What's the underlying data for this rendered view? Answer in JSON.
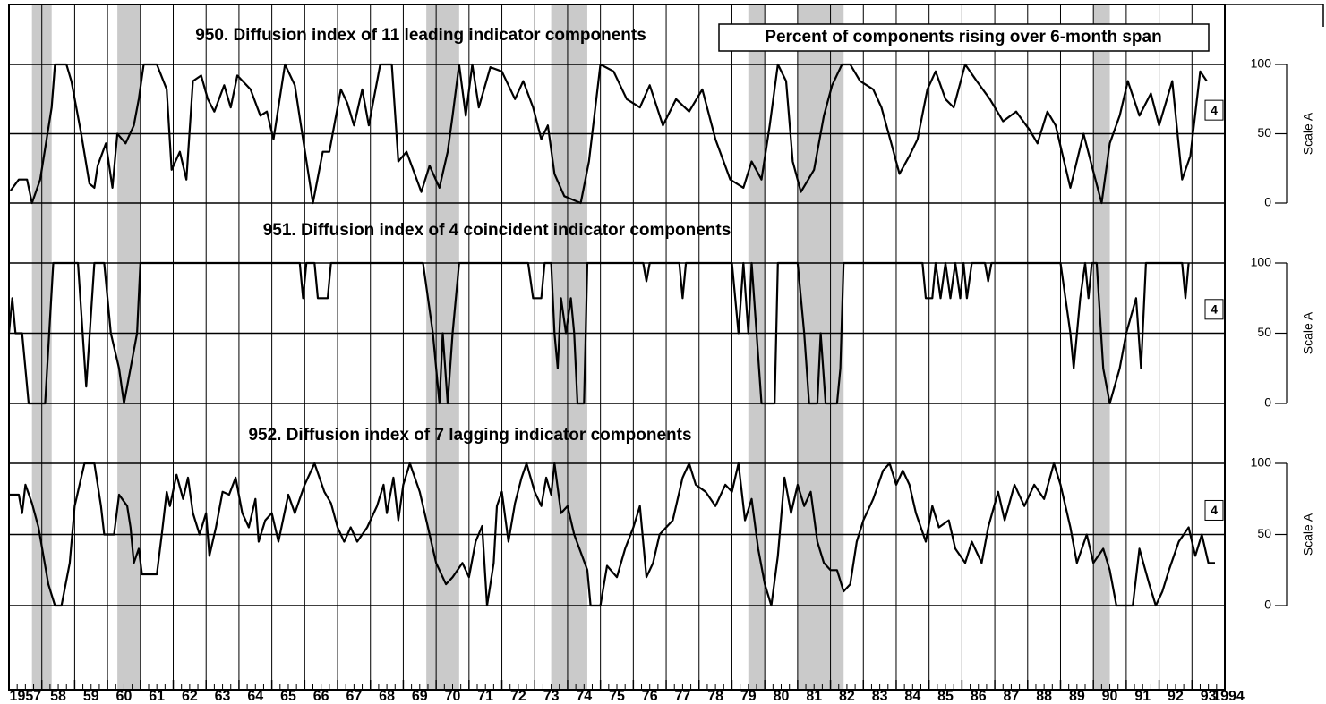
{
  "chart_data": [
    {
      "type": "line",
      "title": "950. Diffusion index of 11 leading indicator components",
      "annotation": "Percent of components rising over 6-month span",
      "box_label": "4",
      "ylabel": "Scale A",
      "color": "#000000",
      "shade_color": "#b8b8b8",
      "shaded_periods": [
        [
          1957.7,
          1958.3
        ],
        [
          1960.3,
          1961.0
        ],
        [
          1969.7,
          1970.7
        ],
        [
          1973.5,
          1974.6
        ],
        [
          1979.5,
          1980.0
        ],
        [
          1981.0,
          1982.4
        ],
        [
          1990.0,
          1990.5
        ]
      ],
      "xlim": [
        1957,
        1994
      ],
      "ylim": [
        0,
        100
      ],
      "yticks": [
        0,
        50,
        100
      ],
      "x": [
        1957.05,
        1957.3,
        1957.55,
        1957.7,
        1957.95,
        1958.3,
        1958.4,
        1958.75,
        1958.9,
        1959.2,
        1959.45,
        1959.6,
        1959.7,
        1959.95,
        1960.15,
        1960.3,
        1960.55,
        1960.8,
        1960.95,
        1961.1,
        1961.5,
        1961.8,
        1961.95,
        1962.2,
        1962.4,
        1962.6,
        1962.85,
        1963.05,
        1963.25,
        1963.55,
        1963.75,
        1963.95,
        1964.35,
        1964.65,
        1964.85,
        1965.05,
        1965.4,
        1965.7,
        1965.95,
        1966.25,
        1966.55,
        1966.75,
        1967.1,
        1967.3,
        1967.5,
        1967.75,
        1967.95,
        1968.3,
        1968.65,
        1968.85,
        1969.1,
        1969.55,
        1969.8,
        1970.1,
        1970.35,
        1970.5,
        1970.7,
        1970.9,
        1971.1,
        1971.3,
        1971.65,
        1972.0,
        1972.4,
        1972.65,
        1972.95,
        1973.2,
        1973.4,
        1973.6,
        1973.9,
        1974.4,
        1974.65,
        1975.0,
        1975.4,
        1975.8,
        1976.2,
        1976.5,
        1976.9,
        1977.3,
        1977.7,
        1978.1,
        1978.5,
        1978.95,
        1979.35,
        1979.6,
        1979.9,
        1980.15,
        1980.4,
        1980.65,
        1980.85,
        1981.1,
        1981.5,
        1981.8,
        1982.05,
        1982.35,
        1982.6,
        1982.9,
        1983.3,
        1983.55,
        1983.85,
        1984.1,
        1984.4,
        1984.65,
        1984.95,
        1985.2,
        1985.5,
        1985.75,
        1986.1,
        1986.45,
        1986.85,
        1987.25,
        1987.65,
        1988.05,
        1988.3,
        1988.6,
        1988.85,
        1989.3,
        1989.7,
        1989.95,
        1990.25,
        1990.5,
        1990.8,
        1991.05,
        1991.4,
        1991.75,
        1992.0,
        1992.4,
        1992.7,
        1992.95,
        1993.25,
        1993.45
      ],
      "values": [
        9,
        17,
        17,
        0,
        17,
        69,
        100,
        100,
        88,
        50,
        14,
        11,
        27,
        43,
        11,
        50,
        43,
        56,
        75,
        100,
        100,
        82,
        24,
        37,
        17,
        88,
        92,
        75,
        66,
        85,
        69,
        92,
        82,
        63,
        66,
        46,
        100,
        85,
        46,
        0,
        37,
        37,
        82,
        72,
        56,
        82,
        56,
        100,
        100,
        30,
        37,
        8,
        27,
        11,
        37,
        63,
        100,
        63,
        100,
        69,
        98,
        95,
        75,
        88,
        69,
        46,
        56,
        21,
        5,
        0,
        30,
        100,
        95,
        75,
        69,
        85,
        56,
        75,
        66,
        82,
        46,
        17,
        11,
        30,
        17,
        56,
        100,
        88,
        30,
        8,
        24,
        63,
        85,
        100,
        100,
        88,
        82,
        69,
        43,
        21,
        34,
        46,
        82,
        95,
        75,
        69,
        100,
        88,
        75,
        59,
        66,
        53,
        43,
        66,
        56,
        11,
        50,
        27,
        0,
        43,
        63,
        88,
        63,
        79,
        56,
        88,
        17,
        34,
        95,
        88
      ]
    },
    {
      "type": "line",
      "title": "951. Diffusion index of 4 coincident indicator components",
      "box_label": "4",
      "ylabel": "Scale A",
      "color": "#000000",
      "xlim": [
        1957,
        1994
      ],
      "ylim": [
        0,
        100
      ],
      "yticks": [
        0,
        50,
        100
      ],
      "x": [
        1957.0,
        1957.1,
        1957.2,
        1957.4,
        1957.6,
        1958.1,
        1958.35,
        1958.8,
        1959.1,
        1959.35,
        1959.6,
        1959.9,
        1960.1,
        1960.35,
        1960.5,
        1960.7,
        1960.9,
        1961.0,
        1965.85,
        1965.95,
        1966.05,
        1966.3,
        1966.4,
        1966.7,
        1966.8,
        1969.6,
        1969.9,
        1970.1,
        1970.2,
        1970.35,
        1970.5,
        1970.7,
        1972.8,
        1972.95,
        1973.2,
        1973.3,
        1973.5,
        1973.6,
        1973.7,
        1973.8,
        1973.95,
        1974.1,
        1974.2,
        1974.3,
        1974.5,
        1974.6,
        1976.3,
        1976.4,
        1976.5,
        1977.4,
        1977.5,
        1977.6,
        1979.0,
        1979.2,
        1979.35,
        1979.5,
        1979.6,
        1979.75,
        1979.9,
        1980.3,
        1980.4,
        1981.0,
        1981.2,
        1981.35,
        1981.6,
        1981.7,
        1981.85,
        1982.2,
        1982.3,
        1982.4,
        1984.8,
        1984.9,
        1985.1,
        1985.2,
        1985.35,
        1985.5,
        1985.65,
        1985.8,
        1985.95,
        1986.05,
        1986.15,
        1986.3,
        1986.7,
        1986.8,
        1986.9,
        1989.0,
        1989.3,
        1989.4,
        1989.6,
        1989.75,
        1989.85,
        1989.95,
        1990.1,
        1990.3,
        1990.5,
        1990.8,
        1991.0,
        1991.3,
        1991.45,
        1991.6,
        1992.7,
        1992.8,
        1992.9
      ],
      "values": [
        50,
        75,
        50,
        50,
        0,
        0,
        100,
        100,
        100,
        12,
        100,
        100,
        50,
        25,
        0,
        25,
        50,
        100,
        100,
        75,
        100,
        100,
        75,
        75,
        100,
        100,
        50,
        0,
        50,
        0,
        50,
        100,
        100,
        75,
        75,
        100,
        100,
        50,
        25,
        75,
        50,
        75,
        50,
        0,
        0,
        100,
        100,
        87,
        100,
        100,
        75,
        100,
        100,
        50,
        100,
        50,
        100,
        50,
        0,
        0,
        100,
        100,
        50,
        0,
        0,
        50,
        0,
        0,
        25,
        100,
        100,
        75,
        75,
        100,
        75,
        100,
        75,
        100,
        75,
        100,
        75,
        100,
        100,
        87,
        100,
        100,
        50,
        25,
        75,
        100,
        75,
        100,
        100,
        25,
        0,
        25,
        50,
        75,
        25,
        100,
        100,
        75,
        100
      ]
    },
    {
      "type": "line",
      "title": "952. Diffusion index of 7 lagging indicator components",
      "box_label": "4",
      "ylabel": "Scale A",
      "color": "#000000",
      "xlim": [
        1957,
        1994
      ],
      "ylim": [
        0,
        100
      ],
      "yticks": [
        0,
        50,
        100
      ],
      "xticks": [
        {
          "value": 1957,
          "label": "1957"
        },
        {
          "value": 1958,
          "label": "58"
        },
        {
          "value": 1959,
          "label": "59"
        },
        {
          "value": 1960,
          "label": "60"
        },
        {
          "value": 1961,
          "label": "61"
        },
        {
          "value": 1962,
          "label": "62"
        },
        {
          "value": 1963,
          "label": "63"
        },
        {
          "value": 1964,
          "label": "64"
        },
        {
          "value": 1965,
          "label": "65"
        },
        {
          "value": 1966,
          "label": "66"
        },
        {
          "value": 1967,
          "label": "67"
        },
        {
          "value": 1968,
          "label": "68"
        },
        {
          "value": 1969,
          "label": "69"
        },
        {
          "value": 1970,
          "label": "70"
        },
        {
          "value": 1971,
          "label": "71"
        },
        {
          "value": 1972,
          "label": "72"
        },
        {
          "value": 1973,
          "label": "73"
        },
        {
          "value": 1974,
          "label": "74"
        },
        {
          "value": 1975,
          "label": "75"
        },
        {
          "value": 1976,
          "label": "76"
        },
        {
          "value": 1977,
          "label": "77"
        },
        {
          "value": 1978,
          "label": "78"
        },
        {
          "value": 1979,
          "label": "79"
        },
        {
          "value": 1980,
          "label": "80"
        },
        {
          "value": 1981,
          "label": "81"
        },
        {
          "value": 1982,
          "label": "82"
        },
        {
          "value": 1983,
          "label": "83"
        },
        {
          "value": 1984,
          "label": "84"
        },
        {
          "value": 1985,
          "label": "85"
        },
        {
          "value": 1986,
          "label": "86"
        },
        {
          "value": 1987,
          "label": "87"
        },
        {
          "value": 1988,
          "label": "88"
        },
        {
          "value": 1989,
          "label": "89"
        },
        {
          "value": 1990,
          "label": "90"
        },
        {
          "value": 1991,
          "label": "91"
        },
        {
          "value": 1992,
          "label": "92"
        },
        {
          "value": 1993,
          "label": "93"
        },
        1994
      ],
      "x": [
        1957.0,
        1957.3,
        1957.4,
        1957.5,
        1957.7,
        1957.9,
        1958.2,
        1958.4,
        1958.6,
        1958.85,
        1959.0,
        1959.2,
        1959.3,
        1959.6,
        1959.8,
        1959.9,
        1960.2,
        1960.35,
        1960.6,
        1960.7,
        1960.8,
        1960.95,
        1961.05,
        1961.5,
        1961.65,
        1961.8,
        1961.9,
        1962.1,
        1962.3,
        1962.45,
        1962.6,
        1962.8,
        1963.0,
        1963.1,
        1963.3,
        1963.5,
        1963.7,
        1963.9,
        1964.1,
        1964.3,
        1964.5,
        1964.6,
        1964.8,
        1965.0,
        1965.2,
        1965.5,
        1965.7,
        1966.0,
        1966.3,
        1966.6,
        1966.8,
        1967.0,
        1967.2,
        1967.4,
        1967.6,
        1967.9,
        1968.2,
        1968.4,
        1968.5,
        1968.7,
        1968.85,
        1969.0,
        1969.2,
        1969.5,
        1969.75,
        1970.0,
        1970.3,
        1970.5,
        1970.8,
        1971.0,
        1971.2,
        1971.4,
        1971.55,
        1971.75,
        1971.85,
        1972.0,
        1972.2,
        1972.4,
        1972.6,
        1972.75,
        1973.0,
        1973.2,
        1973.35,
        1973.5,
        1973.6,
        1973.8,
        1974.0,
        1974.2,
        1974.6,
        1974.7,
        1975.0,
        1975.2,
        1975.5,
        1975.75,
        1976.0,
        1976.2,
        1976.4,
        1976.6,
        1976.8,
        1977.0,
        1977.2,
        1977.5,
        1977.7,
        1977.9,
        1978.2,
        1978.5,
        1978.8,
        1979.0,
        1979.2,
        1979.4,
        1979.6,
        1979.8,
        1980.0,
        1980.2,
        1980.4,
        1980.6,
        1980.8,
        1981.0,
        1981.2,
        1981.4,
        1981.6,
        1981.8,
        1982.0,
        1982.2,
        1982.4,
        1982.6,
        1982.8,
        1983.0,
        1983.3,
        1983.6,
        1983.8,
        1984.0,
        1984.2,
        1984.4,
        1984.6,
        1984.9,
        1985.1,
        1985.3,
        1985.6,
        1985.8,
        1986.1,
        1986.3,
        1986.6,
        1986.8,
        1987.1,
        1987.3,
        1987.6,
        1987.9,
        1988.2,
        1988.5,
        1988.8,
        1989.0,
        1989.3,
        1989.5,
        1989.8,
        1990.0,
        1990.3,
        1990.5,
        1990.7,
        1991.2,
        1991.4,
        1991.7,
        1991.9,
        1992.1,
        1992.3,
        1992.6,
        1992.9,
        1993.1,
        1993.3,
        1993.5,
        1993.7
      ],
      "values": [
        78,
        78,
        65,
        85,
        72,
        55,
        15,
        0,
        0,
        30,
        70,
        90,
        100,
        100,
        70,
        50,
        50,
        78,
        70,
        55,
        30,
        40,
        22,
        22,
        50,
        80,
        70,
        92,
        75,
        90,
        65,
        50,
        65,
        35,
        55,
        80,
        78,
        90,
        65,
        55,
        75,
        45,
        60,
        65,
        45,
        78,
        65,
        85,
        100,
        80,
        72,
        55,
        45,
        55,
        45,
        55,
        70,
        85,
        65,
        90,
        60,
        85,
        100,
        80,
        55,
        30,
        15,
        20,
        30,
        20,
        45,
        56,
        0,
        30,
        70,
        80,
        45,
        72,
        90,
        100,
        80,
        70,
        90,
        78,
        100,
        65,
        70,
        50,
        25,
        0,
        0,
        28,
        20,
        40,
        55,
        70,
        20,
        30,
        50,
        55,
        60,
        90,
        100,
        85,
        80,
        70,
        85,
        80,
        100,
        60,
        75,
        40,
        15,
        0,
        35,
        90,
        65,
        85,
        70,
        80,
        45,
        30,
        25,
        25,
        10,
        15,
        45,
        60,
        75,
        95,
        100,
        85,
        95,
        85,
        65,
        45,
        70,
        55,
        60,
        40,
        30,
        45,
        30,
        55,
        80,
        60,
        85,
        70,
        85,
        75,
        100,
        85,
        55,
        30,
        50,
        30,
        40,
        25,
        0,
        0,
        40,
        15,
        0,
        10,
        25,
        45,
        55,
        35,
        50,
        30,
        30
      ]
    }
  ]
}
